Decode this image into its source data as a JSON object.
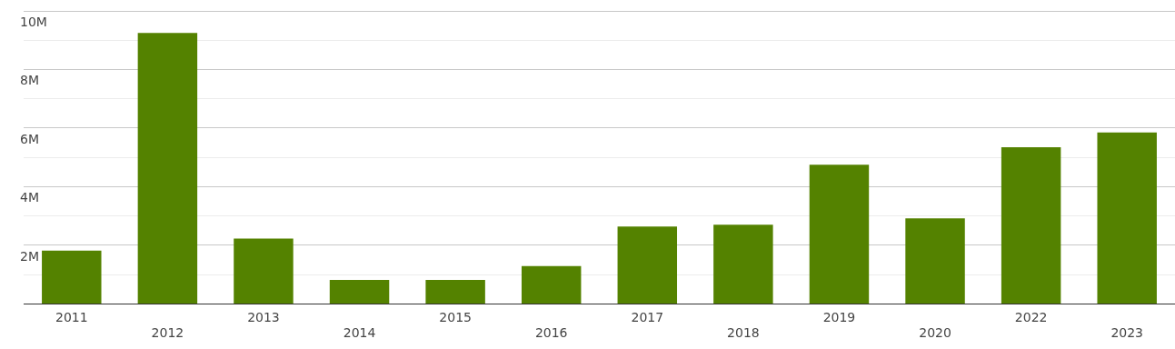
{
  "chart_data": {
    "type": "bar",
    "categories": [
      "2011",
      "2012",
      "2013",
      "2014",
      "2015",
      "2016",
      "2017",
      "2018",
      "2019",
      "2020",
      "2022",
      "2023"
    ],
    "values": [
      1820000,
      9250000,
      2230000,
      820000,
      820000,
      1290000,
      2640000,
      2700000,
      4750000,
      2920000,
      5350000,
      5850000
    ],
    "color": "#548200",
    "ylim": [
      0,
      10000000
    ],
    "yticks": [
      {
        "value": 0,
        "label": null
      },
      {
        "value": 1000000,
        "label": null
      },
      {
        "value": 2000000,
        "label": "2M"
      },
      {
        "value": 3000000,
        "label": null
      },
      {
        "value": 4000000,
        "label": "4M"
      },
      {
        "value": 5000000,
        "label": null
      },
      {
        "value": 6000000,
        "label": "6M"
      },
      {
        "value": 7000000,
        "label": null
      },
      {
        "value": 8000000,
        "label": "8M"
      },
      {
        "value": 9000000,
        "label": null
      },
      {
        "value": 10000000,
        "label": "10M"
      }
    ],
    "grid": "y"
  }
}
